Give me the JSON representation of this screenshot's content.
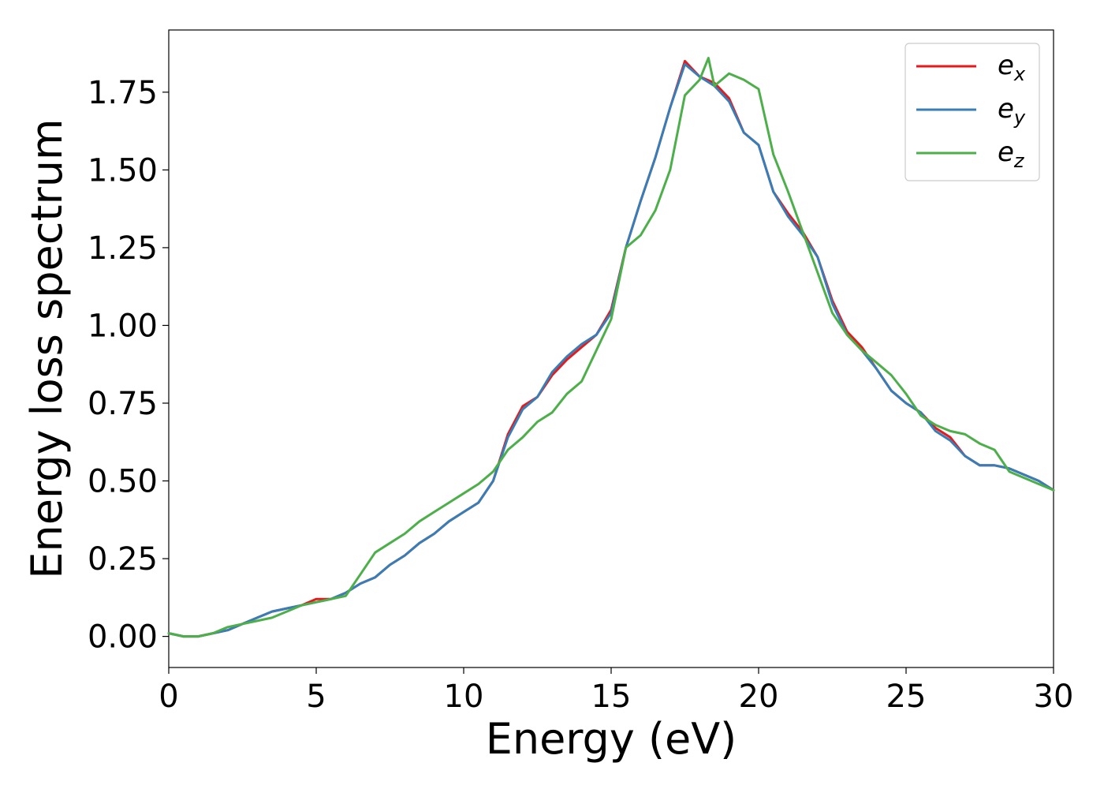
{
  "chart_data": {
    "type": "line",
    "title": "",
    "xlabel": "Energy (eV)",
    "ylabel": "Energy loss spectrum",
    "xlim": [
      0,
      30
    ],
    "ylim": [
      -0.1,
      1.95
    ],
    "xticks": [
      0,
      5,
      10,
      15,
      20,
      25,
      30
    ],
    "xtick_labels": [
      "0",
      "5",
      "10",
      "15",
      "20",
      "25",
      "30"
    ],
    "yticks": [
      0.0,
      0.25,
      0.5,
      0.75,
      1.0,
      1.25,
      1.5,
      1.75
    ],
    "ytick_labels": [
      "0.00",
      "0.25",
      "0.50",
      "0.75",
      "1.00",
      "1.25",
      "1.50",
      "1.75"
    ],
    "grid": false,
    "legend_position": "top-right",
    "series": [
      {
        "name": "e",
        "subscript": "x",
        "color": "#e41a1c",
        "x": [
          0,
          0.5,
          1,
          1.5,
          2,
          2.5,
          3,
          3.5,
          4,
          4.5,
          5,
          5.5,
          6,
          6.5,
          7,
          7.5,
          8,
          8.5,
          9,
          9.5,
          10,
          10.5,
          11,
          11.5,
          12,
          12.5,
          13,
          13.5,
          14,
          14.5,
          15,
          15.5,
          16,
          16.5,
          17,
          17.5,
          18,
          18.5,
          19,
          19.5,
          20,
          20.5,
          21,
          21.5,
          22,
          22.5,
          23,
          23.5,
          24,
          24.5,
          25,
          25.5,
          26,
          26.5,
          27,
          27.5,
          28,
          28.5,
          29,
          29.5,
          30
        ],
        "y": [
          0.01,
          0.0,
          0.0,
          0.01,
          0.02,
          0.04,
          0.06,
          0.08,
          0.09,
          0.1,
          0.12,
          0.12,
          0.14,
          0.17,
          0.19,
          0.23,
          0.26,
          0.3,
          0.33,
          0.37,
          0.4,
          0.43,
          0.5,
          0.65,
          0.74,
          0.77,
          0.84,
          0.89,
          0.93,
          0.97,
          1.05,
          1.25,
          1.4,
          1.54,
          1.7,
          1.85,
          1.8,
          1.78,
          1.73,
          1.62,
          1.58,
          1.43,
          1.36,
          1.3,
          1.22,
          1.08,
          0.98,
          0.93,
          0.86,
          0.79,
          0.75,
          0.72,
          0.67,
          0.64,
          0.58,
          0.55,
          0.55,
          0.54,
          0.52,
          0.5,
          0.47
        ]
      },
      {
        "name": "e",
        "subscript": "y",
        "color": "#377eb8",
        "x": [
          0,
          0.5,
          1,
          1.5,
          2,
          2.5,
          3,
          3.5,
          4,
          4.5,
          5,
          5.5,
          6,
          6.5,
          7,
          7.5,
          8,
          8.5,
          9,
          9.5,
          10,
          10.5,
          11,
          11.5,
          12,
          12.5,
          13,
          13.5,
          14,
          14.5,
          15,
          15.5,
          16,
          16.5,
          17,
          17.5,
          18,
          18.5,
          19,
          19.5,
          20,
          20.5,
          21,
          21.5,
          22,
          22.5,
          23,
          23.5,
          24,
          24.5,
          25,
          25.5,
          26,
          26.5,
          27,
          27.5,
          28,
          28.5,
          29,
          29.5,
          30
        ],
        "y": [
          0.01,
          0.0,
          0.0,
          0.01,
          0.02,
          0.04,
          0.06,
          0.08,
          0.09,
          0.1,
          0.11,
          0.12,
          0.14,
          0.17,
          0.19,
          0.23,
          0.26,
          0.3,
          0.33,
          0.37,
          0.4,
          0.43,
          0.5,
          0.64,
          0.73,
          0.77,
          0.85,
          0.9,
          0.94,
          0.97,
          1.04,
          1.25,
          1.4,
          1.54,
          1.7,
          1.84,
          1.8,
          1.77,
          1.72,
          1.62,
          1.58,
          1.43,
          1.35,
          1.29,
          1.22,
          1.07,
          0.97,
          0.92,
          0.86,
          0.79,
          0.75,
          0.72,
          0.66,
          0.63,
          0.58,
          0.55,
          0.55,
          0.54,
          0.52,
          0.5,
          0.47
        ]
      },
      {
        "name": "e",
        "subscript": "z",
        "color": "#4daf4a",
        "x": [
          0,
          0.5,
          1,
          1.5,
          2,
          2.5,
          3,
          3.5,
          4,
          4.5,
          5,
          5.5,
          6,
          6.5,
          7,
          7.5,
          8,
          8.5,
          9,
          9.5,
          10,
          10.5,
          11,
          11.5,
          12,
          12.5,
          13,
          13.5,
          14,
          14.5,
          15,
          15.5,
          16,
          16.5,
          17,
          17.5,
          18,
          18.3,
          18.5,
          19,
          19.5,
          20,
          20.5,
          21,
          21.5,
          22,
          22.5,
          23,
          23.5,
          24,
          24.5,
          25,
          25.5,
          26,
          26.5,
          27,
          27.5,
          28,
          28.5,
          29,
          29.5,
          30
        ],
        "y": [
          0.01,
          0.0,
          0.0,
          0.01,
          0.03,
          0.04,
          0.05,
          0.06,
          0.08,
          0.1,
          0.11,
          0.12,
          0.13,
          0.2,
          0.27,
          0.3,
          0.33,
          0.37,
          0.4,
          0.43,
          0.46,
          0.49,
          0.53,
          0.6,
          0.64,
          0.69,
          0.72,
          0.78,
          0.82,
          0.92,
          1.02,
          1.25,
          1.29,
          1.37,
          1.5,
          1.74,
          1.79,
          1.86,
          1.77,
          1.81,
          1.79,
          1.76,
          1.55,
          1.43,
          1.3,
          1.17,
          1.04,
          0.97,
          0.92,
          0.88,
          0.84,
          0.78,
          0.71,
          0.68,
          0.66,
          0.65,
          0.62,
          0.6,
          0.53,
          0.51,
          0.49,
          0.47
        ]
      }
    ]
  }
}
